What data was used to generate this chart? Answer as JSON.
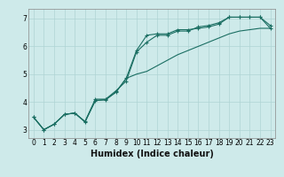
{
  "xlabel": "Humidex (Indice chaleur)",
  "xlim": [
    -0.5,
    23.5
  ],
  "ylim": [
    2.7,
    7.35
  ],
  "xticks": [
    0,
    1,
    2,
    3,
    4,
    5,
    6,
    7,
    8,
    9,
    10,
    11,
    12,
    13,
    14,
    15,
    16,
    17,
    18,
    19,
    20,
    21,
    22,
    23
  ],
  "yticks": [
    3,
    4,
    5,
    6,
    7
  ],
  "bg_color": "#ceeaea",
  "grid_color": "#afd4d4",
  "line_color": "#1a6e62",
  "line1_x": [
    0,
    1,
    2,
    3,
    4,
    5,
    6,
    7,
    8,
    9,
    10,
    11,
    12,
    13,
    14,
    15,
    16,
    17,
    18,
    19,
    20,
    21,
    22,
    23
  ],
  "line1_y": [
    3.45,
    3.0,
    3.2,
    3.55,
    3.6,
    3.3,
    4.1,
    4.1,
    4.4,
    4.75,
    5.8,
    6.15,
    6.4,
    6.4,
    6.55,
    6.55,
    6.7,
    6.75,
    6.85,
    7.05,
    7.05,
    7.05,
    7.05,
    6.75
  ],
  "line2_x": [
    0,
    1,
    2,
    3,
    4,
    5,
    6,
    7,
    8,
    9,
    10,
    11,
    12,
    13,
    14,
    15,
    16,
    17,
    18,
    19,
    20,
    21,
    22,
    23
  ],
  "line2_y": [
    3.45,
    3.0,
    3.2,
    3.55,
    3.6,
    3.28,
    4.05,
    4.08,
    4.35,
    4.85,
    5.0,
    5.1,
    5.3,
    5.5,
    5.7,
    5.85,
    6.0,
    6.15,
    6.3,
    6.45,
    6.55,
    6.6,
    6.65,
    6.65
  ],
  "line3_x": [
    0,
    1,
    2,
    3,
    4,
    5,
    6,
    7,
    8,
    9,
    10,
    11,
    12,
    13,
    14,
    15,
    16,
    17,
    18,
    19,
    20,
    21,
    22,
    23
  ],
  "line3_y": [
    3.45,
    3.0,
    3.2,
    3.55,
    3.6,
    3.28,
    4.05,
    4.08,
    4.35,
    4.85,
    5.85,
    6.4,
    6.45,
    6.45,
    6.6,
    6.6,
    6.65,
    6.7,
    6.8,
    7.05,
    7.05,
    7.05,
    7.05,
    6.65
  ],
  "marker": "+",
  "markersize": 3,
  "linewidth": 0.8,
  "label_fontsize": 7,
  "tick_fontsize": 5.5
}
